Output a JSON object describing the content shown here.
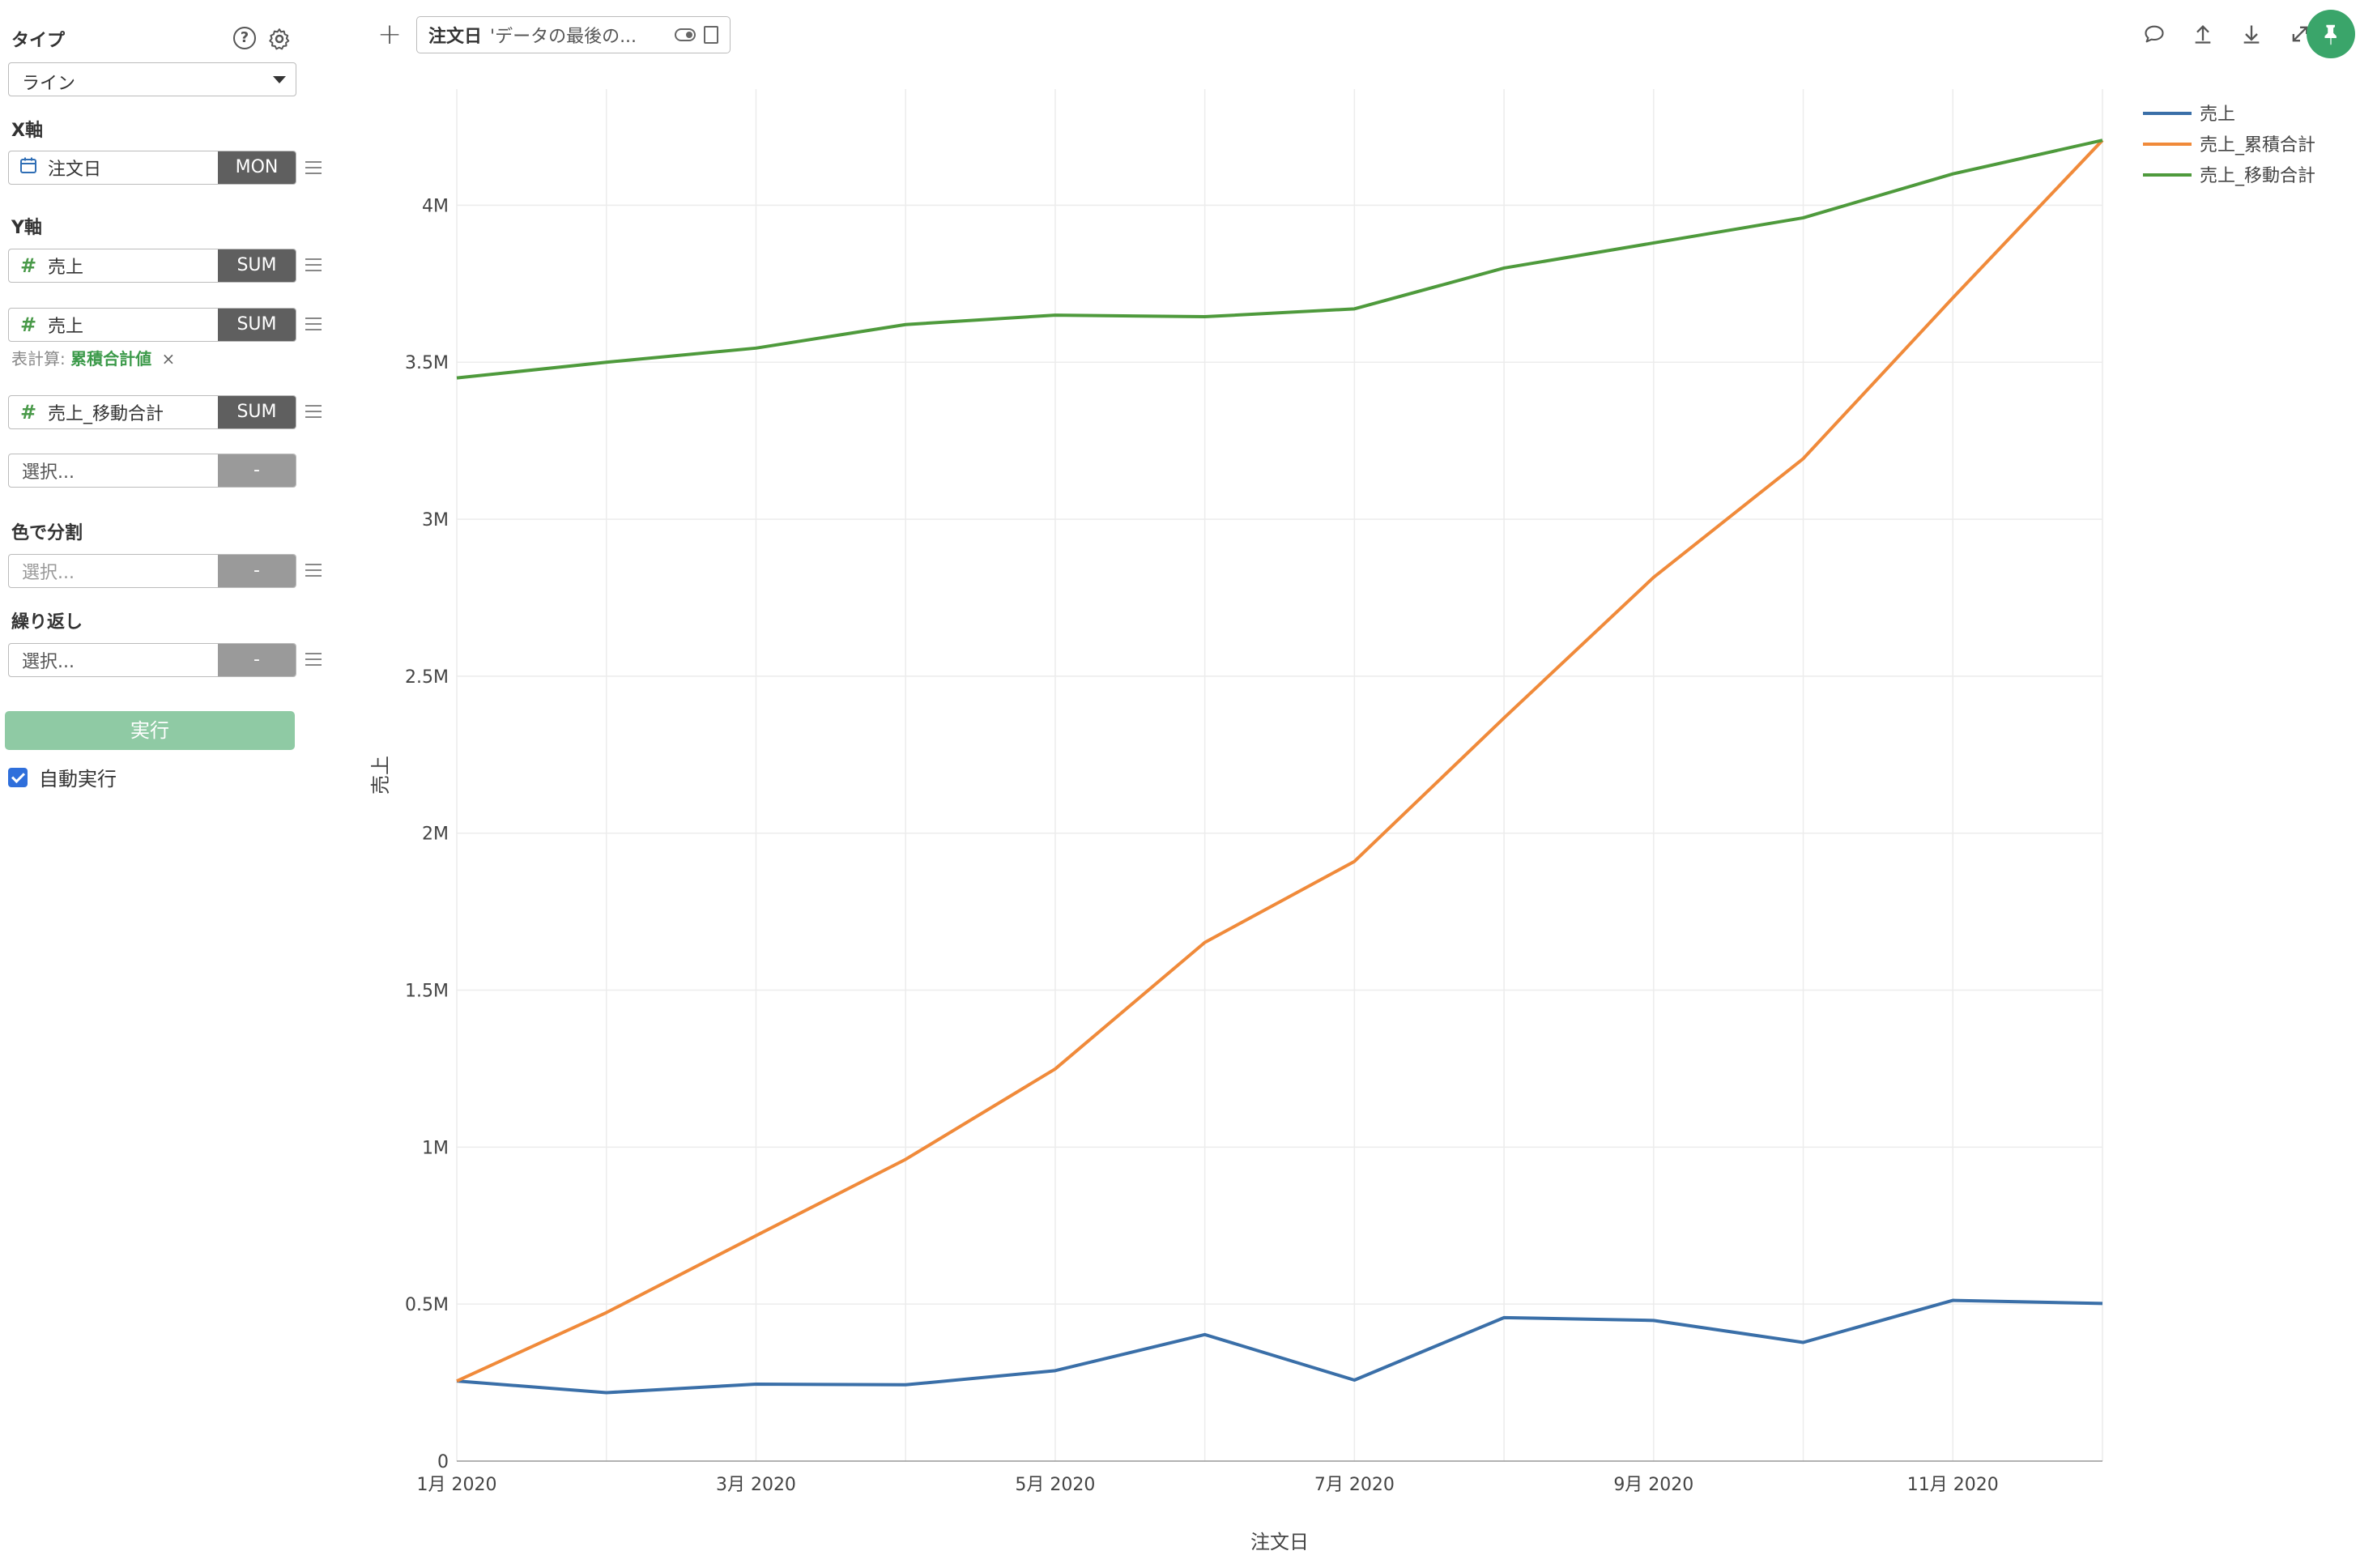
{
  "sidebar": {
    "type_label": "タイプ",
    "help_icon": "help-circle-icon",
    "settings_icon": "gear-icon",
    "type_value": "ライン",
    "x_axis_label": "X軸",
    "x_field": {
      "icon": "calendar-icon",
      "name": "注文日",
      "agg": "MON"
    },
    "y_axis_label": "Y軸",
    "y_fields": [
      {
        "icon": "#",
        "name": "売上",
        "agg": "SUM"
      },
      {
        "icon": "#",
        "name": "売上",
        "agg": "SUM"
      },
      {
        "icon": "#",
        "name": "売上_移動合計",
        "agg": "SUM"
      }
    ],
    "table_calc_label": "表計算:",
    "table_calc_value": "累積合計値",
    "table_calc_remove": "×",
    "y_empty": {
      "placeholder": "選択...",
      "agg": "-"
    },
    "color_label": "色で分割",
    "color_field": {
      "placeholder": "選択...",
      "agg": "-"
    },
    "repeat_label": "繰り返し",
    "repeat_field": {
      "placeholder": "選択...",
      "agg": "-"
    },
    "run_label": "実行",
    "auto_run_label": "自動実行",
    "auto_run_checked": true
  },
  "topbar": {
    "filter_name": "注文日",
    "filter_desc": "'データの最後の...",
    "toolbar_icons": [
      "comment-icon",
      "upload-icon",
      "download-icon",
      "expand-icon"
    ],
    "pin_color": "#3aa56a"
  },
  "chart_data": {
    "type": "line",
    "xlabel": "注文日",
    "ylabel": "売上",
    "x_ticks": [
      "1月 2020",
      "3月 2020",
      "5月 2020",
      "7月 2020",
      "9月 2020",
      "11月 2020"
    ],
    "y_ticks": [
      "0",
      "0.5M",
      "1M",
      "1.5M",
      "2M",
      "2.5M",
      "3M",
      "3.5M",
      "4M"
    ],
    "ylim": [
      0,
      4370000
    ],
    "x": [
      "2020-01",
      "2020-02",
      "2020-03",
      "2020-04",
      "2020-05",
      "2020-06",
      "2020-07",
      "2020-08",
      "2020-09",
      "2020-10",
      "2020-11",
      "2020-12"
    ],
    "legend_position": "top-right",
    "grid": true,
    "series": [
      {
        "name": "売上",
        "color": "#3a6fa8",
        "values": [
          255000,
          218000,
          245000,
          243000,
          288000,
          403000,
          258000,
          457000,
          448000,
          378000,
          512000,
          502000
        ]
      },
      {
        "name": "売上_累積合計",
        "color": "#f08a3a",
        "values": [
          255000,
          473000,
          718000,
          961000,
          1249000,
          1652000,
          1910000,
          2367000,
          2815000,
          3193000,
          3705000,
          4207000
        ]
      },
      {
        "name": "売上_移動合計",
        "color": "#4e9a3c",
        "values": [
          3450000,
          3500000,
          3545000,
          3620000,
          3650000,
          3645000,
          3670000,
          3800000,
          3880000,
          3960000,
          4100000,
          4207000
        ]
      }
    ]
  }
}
